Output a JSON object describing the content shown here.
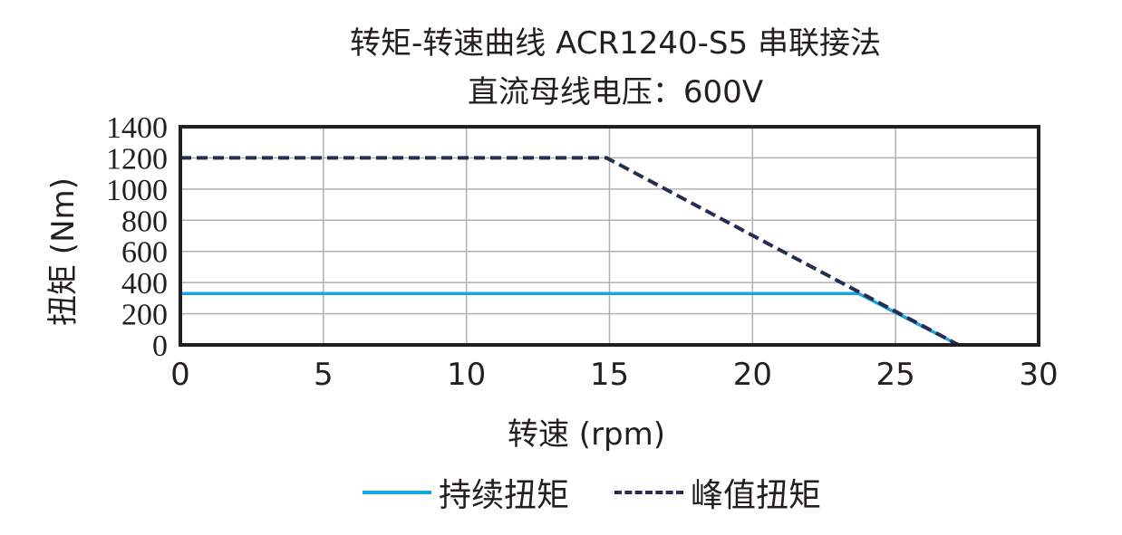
{
  "chart_data": {
    "type": "line",
    "title": "转矩-转速曲线 ACR1240-S5 串联接法",
    "subtitle": "直流母线电压：600V",
    "xlabel": "转速 (rpm)",
    "ylabel": "扭矩 (Nm)",
    "xlim": [
      0,
      30
    ],
    "ylim": [
      0,
      1400
    ],
    "x_ticks": [
      0,
      5,
      10,
      15,
      20,
      25,
      30
    ],
    "y_ticks": [
      0,
      200,
      400,
      600,
      800,
      1000,
      1200,
      1400
    ],
    "grid": true,
    "legend_position": "bottom",
    "series": [
      {
        "name": "持续扭矩",
        "style": "solid",
        "color": "#1ba5de",
        "x": [
          0,
          23.7,
          27.2
        ],
        "y": [
          330,
          330,
          0
        ]
      },
      {
        "name": "峰值扭矩",
        "style": "dashed",
        "color": "#252d52",
        "x": [
          0,
          14.9,
          27.2
        ],
        "y": [
          1200,
          1200,
          0
        ]
      }
    ]
  }
}
